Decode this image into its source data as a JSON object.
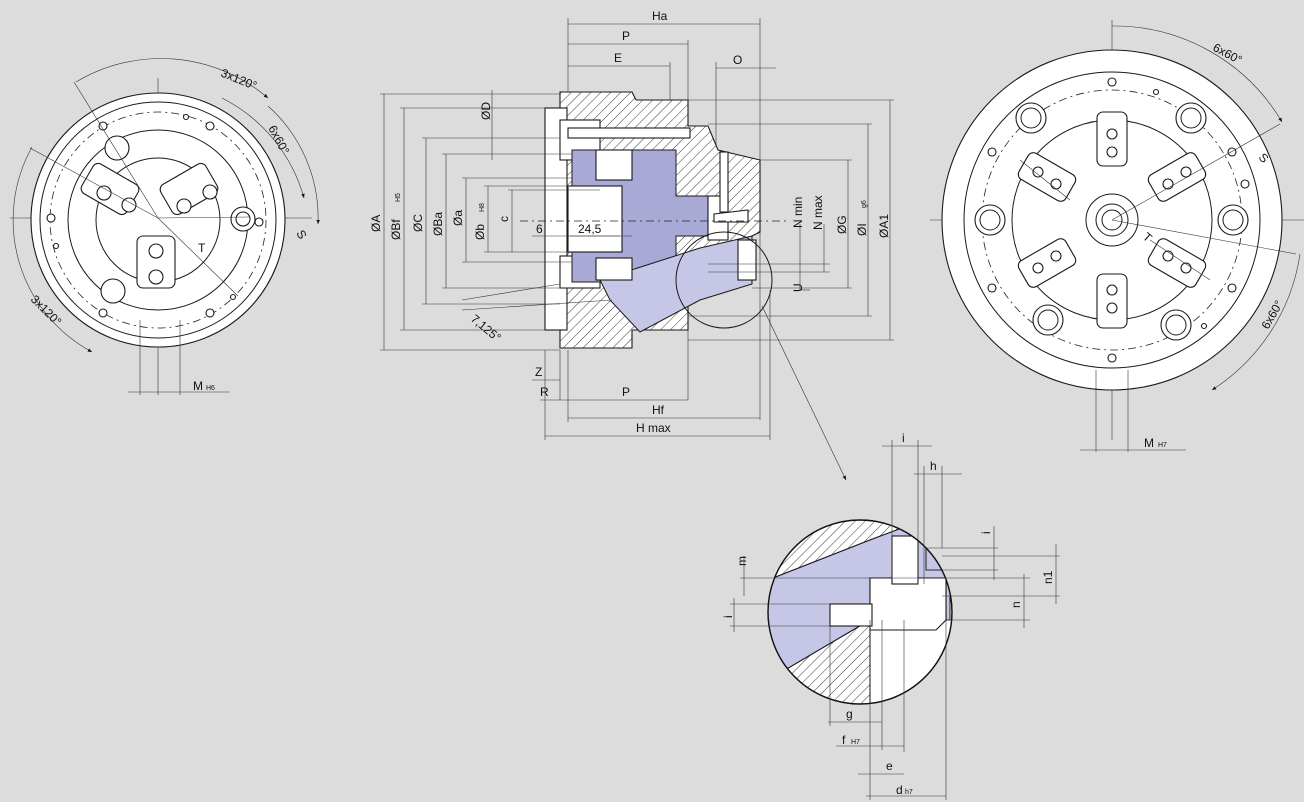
{
  "left_view": {
    "labels": {
      "angle_top": "3x120°",
      "angle_right": "6x60°",
      "angle_left": "3x120°",
      "S": "S",
      "T": "T",
      "M": "M",
      "M_tol": "H6"
    }
  },
  "section_view": {
    "top_dims": {
      "Ha": "Ha",
      "P": "P",
      "E": "E",
      "O": "O"
    },
    "left_dims": {
      "OA": "ØA",
      "OBf": "ØBf",
      "OBf_tol": "H5",
      "OC": "ØC",
      "OBa": "ØBa",
      "Oa": "Øa",
      "Ob": "Øb",
      "Ob_tol": "H8",
      "c": "c",
      "OD": "ØD"
    },
    "inner_dims": {
      "six": "6",
      "twentyfour": "24,5"
    },
    "right_dims": {
      "Nmin": "N min",
      "Nmax": "N max",
      "OG": "ØG",
      "OI": "ØI",
      "OI_tol": "g6",
      "OA1": "ØA1",
      "U": "U"
    },
    "angle": "7,125°",
    "bottom_dims": {
      "Z": "Z",
      "R": "R",
      "P": "P",
      "Hf": "Hf",
      "Hmax": "H max"
    }
  },
  "right_view": {
    "labels": {
      "angle_top": "6x60°",
      "angle_right": "6x60°",
      "S": "S",
      "T": "T",
      "M": "M",
      "M_tol": "H7"
    }
  },
  "detail_view": {
    "labels": {
      "i_top": "i",
      "h": "h",
      "i_right": "i",
      "m": "m",
      "n1": "n1",
      "n": "n",
      "i_left": "i",
      "g": "g",
      "f": "f",
      "f_tol": "H7",
      "e": "e",
      "d": "d",
      "d_tol": "h7"
    }
  }
}
